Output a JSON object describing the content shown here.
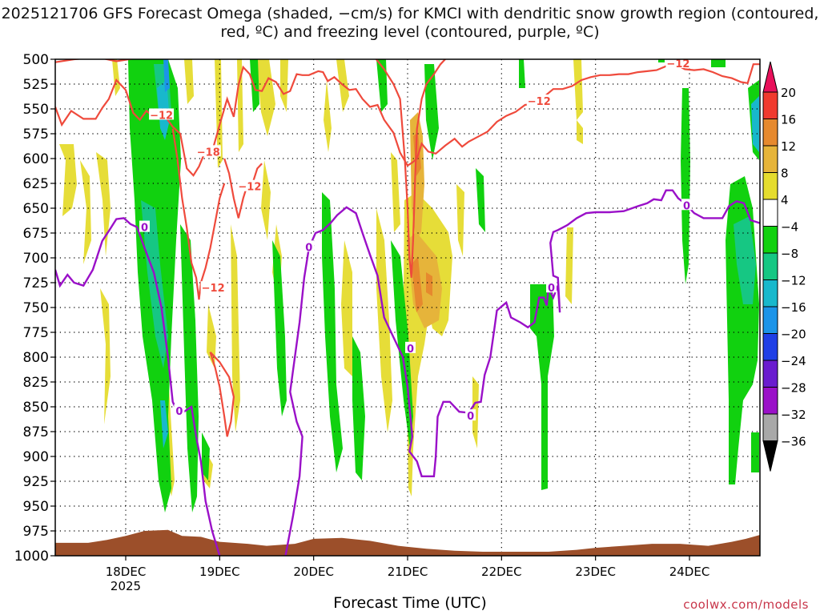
{
  "title": "2025121706 GFS Forecast Omega (shaded, −cm/s) for KMCI with dendritic snow growth region (contoured, red, ºC) and freezing level (contoured, purple, ºC)",
  "credit": "coolwx.com/models",
  "colors": {
    "red_contour": "#ef4a3c",
    "purple_contour": "#9a10c8",
    "terrain": "#9c4f2a",
    "yellow": "#e5dc2e",
    "gold": "#e6b43a",
    "orange": "#e6892e",
    "green": "#11d10f",
    "teal": "#16c783",
    "cyan": "#18b8cc"
  },
  "chart_data": {
    "type": "heatmap",
    "title": "2025121706 GFS Forecast Omega (shaded, −cm/s) for KMCI with dendritic snow growth region (contoured, red, ºC) and freezing level (contoured, purple, ºC)",
    "xlabel": "Forecast Time (UTC)",
    "ylabel": "",
    "y_ticks": [
      "500",
      "525",
      "550",
      "575",
      "600",
      "625",
      "650",
      "675",
      "700",
      "725",
      "750",
      "775",
      "800",
      "825",
      "850",
      "875",
      "900",
      "925",
      "950",
      "975",
      "1000"
    ],
    "y_range": [
      500,
      1000
    ],
    "x_ticks": [
      {
        "label": "18DEC",
        "sub": "2025",
        "t": 18.0
      },
      {
        "label": "19DEC",
        "sub": "",
        "t": 19.0
      },
      {
        "label": "20DEC",
        "sub": "",
        "t": 20.0
      },
      {
        "label": "21DEC",
        "sub": "",
        "t": 21.0
      },
      {
        "label": "22DEC",
        "sub": "",
        "t": 22.0
      },
      {
        "label": "23DEC",
        "sub": "",
        "t": 23.0
      },
      {
        "label": "24DEC",
        "sub": "",
        "t": 24.0
      }
    ],
    "x_range": [
      17.25,
      24.75
    ],
    "grid": true,
    "colorbar": {
      "labels": [
        "20",
        "16",
        "12",
        "8",
        "4",
        "−4",
        "−8",
        "−12",
        "−16",
        "−20",
        "−24",
        "−28",
        "−32",
        "−36"
      ],
      "colors": [
        "#e8105a",
        "#f03a2e",
        "#e6892e",
        "#e6b43a",
        "#e5dc2e",
        "#ffffff",
        "#11d10f",
        "#16c783",
        "#18b8cc",
        "#1c94e8",
        "#1f3fe6",
        "#6a1ccf",
        "#9a10c8",
        "#a8a8a8",
        "#000000"
      ]
    },
    "red_contour_labels": [
      {
        "text": "−12",
        "t": 18.38,
        "p": 556
      },
      {
        "text": "−18",
        "t": 18.88,
        "p": 593
      },
      {
        "text": "−12",
        "t": 19.32,
        "p": 628
      },
      {
        "text": "−12",
        "t": 18.93,
        "p": 730
      },
      {
        "text": "−12",
        "t": 22.4,
        "p": 542
      },
      {
        "text": "−12",
        "t": 23.88,
        "p": 504
      }
    ],
    "purple_contour_labels": [
      {
        "text": "0",
        "t": 18.2,
        "p": 669
      },
      {
        "text": "0",
        "t": 18.57,
        "p": 854
      },
      {
        "text": "0",
        "t": 19.95,
        "p": 689
      },
      {
        "text": "0",
        "t": 21.03,
        "p": 791
      },
      {
        "text": "0",
        "t": 21.67,
        "p": 859
      },
      {
        "text": "0",
        "t": 22.53,
        "p": 730
      },
      {
        "text": "0",
        "t": 23.97,
        "p": 647
      }
    ],
    "red_line": [
      [
        17.25,
        548
      ],
      [
        17.32,
        566
      ],
      [
        17.42,
        552
      ],
      [
        17.55,
        560
      ],
      [
        17.68,
        560
      ],
      [
        17.75,
        549
      ],
      [
        17.82,
        540
      ],
      [
        17.9,
        521
      ],
      [
        18.0,
        531
      ],
      [
        18.08,
        554
      ],
      [
        18.15,
        561
      ],
      [
        18.22,
        552
      ],
      [
        18.3,
        558
      ],
      [
        18.4,
        555
      ],
      [
        18.5,
        568
      ],
      [
        18.58,
        575
      ],
      [
        18.65,
        610
      ],
      [
        18.72,
        617
      ],
      [
        18.78,
        608
      ],
      [
        18.85,
        592
      ],
      [
        18.92,
        593
      ],
      [
        19.0,
        566
      ],
      [
        19.08,
        540
      ],
      [
        19.15,
        558
      ],
      [
        19.2,
        526
      ],
      [
        19.25,
        508
      ],
      [
        19.32,
        515
      ],
      [
        19.38,
        531
      ],
      [
        19.45,
        532
      ],
      [
        19.52,
        519
      ],
      [
        19.6,
        523
      ],
      [
        19.68,
        535
      ],
      [
        19.75,
        532
      ],
      [
        19.82,
        515
      ],
      [
        19.88,
        516
      ],
      [
        19.95,
        516
      ],
      [
        20.05,
        512
      ],
      [
        20.1,
        513
      ],
      [
        20.15,
        522
      ],
      [
        20.22,
        518
      ],
      [
        20.3,
        525
      ],
      [
        20.38,
        531
      ],
      [
        20.45,
        530
      ],
      [
        20.52,
        540
      ],
      [
        20.6,
        548
      ],
      [
        20.68,
        546
      ],
      [
        20.75,
        561
      ],
      [
        20.85,
        574
      ],
      [
        20.92,
        594
      ],
      [
        21.0,
        607
      ],
      [
        21.05,
        604
      ],
      [
        21.1,
        600
      ],
      [
        21.15,
        585
      ],
      [
        21.22,
        593
      ],
      [
        21.3,
        595
      ],
      [
        21.4,
        587
      ],
      [
        21.5,
        580
      ],
      [
        21.58,
        588
      ],
      [
        21.65,
        583
      ],
      [
        21.75,
        578
      ],
      [
        21.85,
        573
      ],
      [
        21.95,
        563
      ],
      [
        22.05,
        557
      ],
      [
        22.15,
        553
      ],
      [
        22.25,
        546
      ],
      [
        22.35,
        545
      ],
      [
        22.45,
        538
      ],
      [
        22.55,
        530
      ],
      [
        22.65,
        530
      ],
      [
        22.75,
        527
      ],
      [
        22.85,
        521
      ],
      [
        22.95,
        518
      ],
      [
        23.05,
        516
      ],
      [
        23.15,
        516
      ],
      [
        23.25,
        515
      ],
      [
        23.35,
        515
      ],
      [
        23.45,
        513
      ],
      [
        23.55,
        512
      ],
      [
        23.65,
        511
      ],
      [
        23.75,
        507
      ],
      [
        23.85,
        505
      ],
      [
        23.95,
        510
      ],
      [
        24.05,
        511
      ],
      [
        24.15,
        510
      ],
      [
        24.25,
        513
      ],
      [
        24.35,
        517
      ],
      [
        24.45,
        519
      ],
      [
        24.55,
        523
      ],
      [
        24.62,
        524
      ],
      [
        24.68,
        505
      ],
      [
        24.75,
        505
      ]
    ],
    "red_line_2": [
      [
        17.25,
        503
      ],
      [
        17.45,
        500
      ],
      [
        17.7,
        498
      ],
      [
        17.9,
        502
      ],
      [
        18.1,
        499
      ]
    ],
    "red_line_3": [
      [
        18.5,
        570
      ],
      [
        18.55,
        600
      ],
      [
        18.6,
        640
      ],
      [
        18.65,
        670
      ],
      [
        18.7,
        705
      ],
      [
        18.75,
        720
      ],
      [
        18.78,
        742
      ],
      [
        18.8,
        725
      ],
      [
        18.85,
        710
      ],
      [
        18.9,
        690
      ],
      [
        18.95,
        665
      ],
      [
        19.0,
        640
      ],
      [
        19.05,
        625
      ]
    ],
    "red_line_4": [
      [
        19.05,
        600
      ],
      [
        19.1,
        615
      ],
      [
        19.15,
        640
      ],
      [
        19.2,
        660
      ],
      [
        19.25,
        640
      ],
      [
        19.3,
        625
      ],
      [
        19.35,
        625
      ],
      [
        19.4,
        610
      ],
      [
        19.45,
        605
      ]
    ],
    "red_line_5": [
      [
        18.9,
        795
      ],
      [
        18.95,
        810
      ],
      [
        19.0,
        830
      ],
      [
        19.05,
        860
      ],
      [
        19.08,
        880
      ],
      [
        19.12,
        865
      ],
      [
        19.15,
        840
      ],
      [
        19.1,
        820
      ],
      [
        19.0,
        805
      ],
      [
        18.9,
        795
      ]
    ],
    "red_line_6": [
      [
        20.65,
        498
      ],
      [
        20.75,
        510
      ],
      [
        20.85,
        525
      ],
      [
        20.92,
        540
      ],
      [
        20.97,
        600
      ],
      [
        21.0,
        650
      ],
      [
        21.02,
        700
      ],
      [
        21.04,
        720
      ],
      [
        21.06,
        680
      ],
      [
        21.08,
        620
      ],
      [
        21.1,
        570
      ],
      [
        21.15,
        540
      ],
      [
        21.2,
        525
      ],
      [
        21.28,
        515
      ],
      [
        21.35,
        505
      ],
      [
        21.42,
        498
      ]
    ],
    "purple_line": [
      [
        17.25,
        712
      ],
      [
        17.3,
        728
      ],
      [
        17.38,
        717
      ],
      [
        17.45,
        725
      ],
      [
        17.55,
        728
      ],
      [
        17.65,
        712
      ],
      [
        17.75,
        683
      ],
      [
        17.82,
        673
      ],
      [
        17.9,
        661
      ],
      [
        17.98,
        660
      ],
      [
        18.05,
        666
      ],
      [
        18.12,
        669
      ],
      [
        18.2,
        690
      ],
      [
        18.3,
        715
      ],
      [
        18.38,
        750
      ],
      [
        18.45,
        800
      ],
      [
        18.5,
        845
      ],
      [
        18.55,
        855
      ],
      [
        18.62,
        855
      ],
      [
        18.7,
        850
      ],
      [
        18.75,
        880
      ],
      [
        18.8,
        905
      ],
      [
        18.85,
        945
      ],
      [
        18.92,
        975
      ],
      [
        19.0,
        1000
      ]
    ],
    "purple_line_2": [
      [
        19.7,
        1000
      ],
      [
        19.78,
        960
      ],
      [
        19.85,
        920
      ],
      [
        19.88,
        880
      ],
      [
        19.82,
        865
      ],
      [
        19.75,
        835
      ],
      [
        19.8,
        800
      ],
      [
        19.85,
        765
      ],
      [
        19.9,
        720
      ],
      [
        19.95,
        690
      ],
      [
        20.02,
        675
      ],
      [
        20.1,
        672
      ],
      [
        20.18,
        665
      ],
      [
        20.25,
        657
      ],
      [
        20.35,
        649
      ],
      [
        20.45,
        655
      ],
      [
        20.52,
        675
      ],
      [
        20.6,
        697
      ],
      [
        20.68,
        718
      ],
      [
        20.75,
        760
      ],
      [
        20.8,
        770
      ],
      [
        20.88,
        786
      ],
      [
        20.95,
        800
      ],
      [
        21.0,
        830
      ],
      [
        21.05,
        880
      ],
      [
        21.02,
        895
      ],
      [
        21.1,
        905
      ],
      [
        21.15,
        920
      ],
      [
        21.22,
        920
      ],
      [
        21.28,
        920
      ],
      [
        21.3,
        900
      ],
      [
        21.32,
        860
      ],
      [
        21.38,
        845
      ],
      [
        21.45,
        845
      ],
      [
        21.55,
        855
      ],
      [
        21.65,
        856
      ],
      [
        21.72,
        846
      ],
      [
        21.78,
        845
      ],
      [
        21.82,
        818
      ],
      [
        21.88,
        800
      ],
      [
        21.92,
        774
      ],
      [
        21.95,
        753
      ],
      [
        22.05,
        745
      ],
      [
        22.1,
        760
      ],
      [
        22.2,
        765
      ],
      [
        22.28,
        770
      ],
      [
        22.35,
        765
      ],
      [
        22.4,
        740
      ],
      [
        22.45,
        740
      ],
      [
        22.48,
        748
      ],
      [
        22.5,
        730
      ],
      [
        22.55,
        740
      ],
      [
        22.6,
        728
      ],
      [
        22.62,
        755
      ],
      [
        22.6,
        720
      ],
      [
        22.55,
        718
      ],
      [
        22.52,
        685
      ],
      [
        22.55,
        674
      ],
      [
        22.6,
        672
      ],
      [
        22.7,
        667
      ],
      [
        22.8,
        660
      ],
      [
        22.9,
        655
      ],
      [
        23.0,
        654
      ],
      [
        23.15,
        654
      ],
      [
        23.3,
        653
      ],
      [
        23.45,
        648
      ],
      [
        23.55,
        645
      ],
      [
        23.62,
        641
      ],
      [
        23.7,
        642
      ],
      [
        23.75,
        632
      ],
      [
        23.82,
        632
      ],
      [
        23.88,
        640
      ],
      [
        23.95,
        645
      ],
      [
        24.05,
        655
      ],
      [
        24.15,
        660
      ],
      [
        24.25,
        660
      ],
      [
        24.35,
        660
      ],
      [
        24.42,
        648
      ],
      [
        24.5,
        643
      ],
      [
        24.58,
        645
      ],
      [
        24.65,
        662
      ],
      [
        24.75,
        665
      ]
    ],
    "terrain_surface": [
      [
        17.25,
        987
      ],
      [
        17.6,
        987
      ],
      [
        17.8,
        984
      ],
      [
        18.0,
        980
      ],
      [
        18.2,
        975
      ],
      [
        18.45,
        974
      ],
      [
        18.6,
        980
      ],
      [
        18.8,
        981
      ],
      [
        19.0,
        986
      ],
      [
        19.3,
        988
      ],
      [
        19.5,
        990
      ],
      [
        19.8,
        988
      ],
      [
        20.0,
        983
      ],
      [
        20.3,
        982
      ],
      [
        20.6,
        985
      ],
      [
        20.9,
        990
      ],
      [
        21.2,
        993
      ],
      [
        21.5,
        995
      ],
      [
        21.8,
        996
      ],
      [
        22.1,
        996
      ],
      [
        22.5,
        996
      ],
      [
        22.8,
        994
      ],
      [
        23.0,
        992
      ],
      [
        23.3,
        990
      ],
      [
        23.6,
        988
      ],
      [
        23.9,
        988
      ],
      [
        24.2,
        990
      ],
      [
        24.45,
        986
      ],
      [
        24.6,
        983
      ],
      [
        24.75,
        979
      ]
    ]
  }
}
